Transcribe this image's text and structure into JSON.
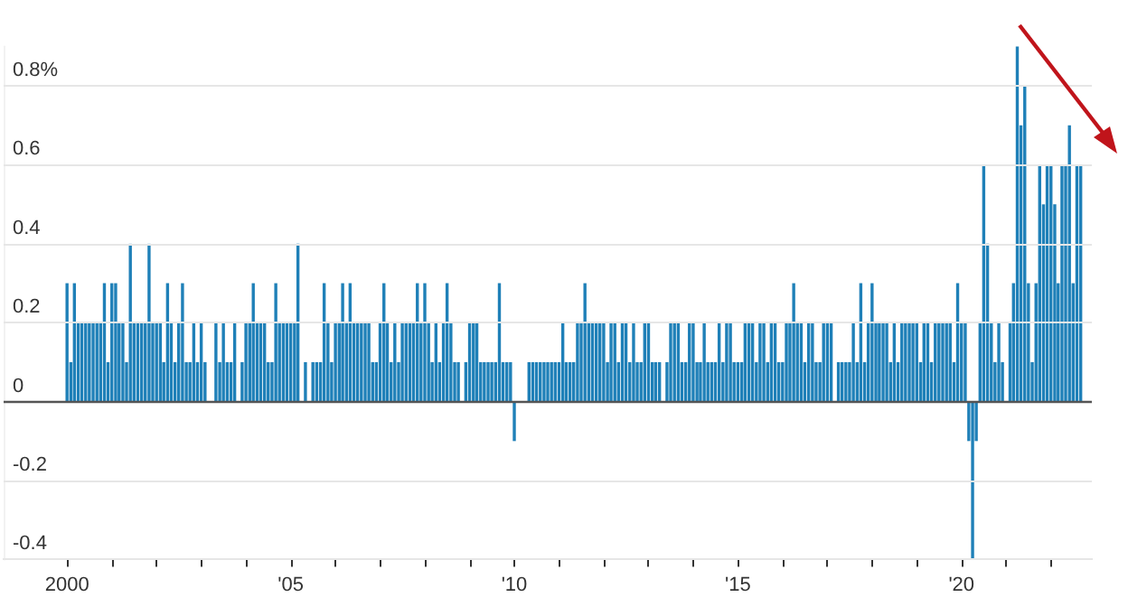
{
  "chart_data": {
    "type": "bar",
    "color": "#1f80b8",
    "grid": "y",
    "x": [
      "2000-01",
      "2000-02",
      "2000-03",
      "2000-04",
      "2000-05",
      "2000-06",
      "2000-07",
      "2000-08",
      "2000-09",
      "2000-10",
      "2000-11",
      "2000-12",
      "2001-01",
      "2001-02",
      "2001-03",
      "2001-04",
      "2001-05",
      "2001-06",
      "2001-07",
      "2001-08",
      "2001-09",
      "2001-10",
      "2001-11",
      "2001-12",
      "2002-01",
      "2002-02",
      "2002-03",
      "2002-04",
      "2002-05",
      "2002-06",
      "2002-07",
      "2002-08",
      "2002-09",
      "2002-10",
      "2002-11",
      "2002-12",
      "2003-01",
      "2003-02",
      "2003-03",
      "2003-04",
      "2003-05",
      "2003-06",
      "2003-07",
      "2003-08",
      "2003-09",
      "2003-10",
      "2003-11",
      "2003-12",
      "2004-01",
      "2004-02",
      "2004-03",
      "2004-04",
      "2004-05",
      "2004-06",
      "2004-07",
      "2004-08",
      "2004-09",
      "2004-10",
      "2004-11",
      "2004-12",
      "2005-01",
      "2005-02",
      "2005-03",
      "2005-04",
      "2005-05",
      "2005-06",
      "2005-07",
      "2005-08",
      "2005-09",
      "2005-10",
      "2005-11",
      "2005-12",
      "2006-01",
      "2006-02",
      "2006-03",
      "2006-04",
      "2006-05",
      "2006-06",
      "2006-07",
      "2006-08",
      "2006-09",
      "2006-10",
      "2006-11",
      "2006-12",
      "2007-01",
      "2007-02",
      "2007-03",
      "2007-04",
      "2007-05",
      "2007-06",
      "2007-07",
      "2007-08",
      "2007-09",
      "2007-10",
      "2007-11",
      "2007-12",
      "2008-01",
      "2008-02",
      "2008-03",
      "2008-04",
      "2008-05",
      "2008-06",
      "2008-07",
      "2008-08",
      "2008-09",
      "2008-10",
      "2008-11",
      "2008-12",
      "2009-01",
      "2009-02",
      "2009-03",
      "2009-04",
      "2009-05",
      "2009-06",
      "2009-07",
      "2009-08",
      "2009-09",
      "2009-10",
      "2009-11",
      "2009-12",
      "2010-01",
      "2010-02",
      "2010-03",
      "2010-04",
      "2010-05",
      "2010-06",
      "2010-07",
      "2010-08",
      "2010-09",
      "2010-10",
      "2010-11",
      "2010-12",
      "2011-01",
      "2011-02",
      "2011-03",
      "2011-04",
      "2011-05",
      "2011-06",
      "2011-07",
      "2011-08",
      "2011-09",
      "2011-10",
      "2011-11",
      "2011-12",
      "2012-01",
      "2012-02",
      "2012-03",
      "2012-04",
      "2012-05",
      "2012-06",
      "2012-07",
      "2012-08",
      "2012-09",
      "2012-10",
      "2012-11",
      "2012-12",
      "2013-01",
      "2013-02",
      "2013-03",
      "2013-04",
      "2013-05",
      "2013-06",
      "2013-07",
      "2013-08",
      "2013-09",
      "2013-10",
      "2013-11",
      "2013-12",
      "2014-01",
      "2014-02",
      "2014-03",
      "2014-04",
      "2014-05",
      "2014-06",
      "2014-07",
      "2014-08",
      "2014-09",
      "2014-10",
      "2014-11",
      "2014-12",
      "2015-01",
      "2015-02",
      "2015-03",
      "2015-04",
      "2015-05",
      "2015-06",
      "2015-07",
      "2015-08",
      "2015-09",
      "2015-10",
      "2015-11",
      "2015-12",
      "2016-01",
      "2016-02",
      "2016-03",
      "2016-04",
      "2016-05",
      "2016-06",
      "2016-07",
      "2016-08",
      "2016-09",
      "2016-10",
      "2016-11",
      "2016-12",
      "2017-01",
      "2017-02",
      "2017-03",
      "2017-04",
      "2017-05",
      "2017-06",
      "2017-07",
      "2017-08",
      "2017-09",
      "2017-10",
      "2017-11",
      "2017-12",
      "2018-01",
      "2018-02",
      "2018-03",
      "2018-04",
      "2018-05",
      "2018-06",
      "2018-07",
      "2018-08",
      "2018-09",
      "2018-10",
      "2018-11",
      "2018-12",
      "2019-01",
      "2019-02",
      "2019-03",
      "2019-04",
      "2019-05",
      "2019-06",
      "2019-07",
      "2019-08",
      "2019-09",
      "2019-10",
      "2019-11",
      "2019-12",
      "2020-01",
      "2020-02",
      "2020-03",
      "2020-04",
      "2020-05",
      "2020-06",
      "2020-07",
      "2020-08",
      "2020-09",
      "2020-10",
      "2020-11",
      "2020-12",
      "2021-01",
      "2021-02",
      "2021-03",
      "2021-04",
      "2021-05",
      "2021-06",
      "2021-07",
      "2021-08",
      "2021-09",
      "2021-10",
      "2021-11",
      "2021-12",
      "2022-01",
      "2022-02",
      "2022-03",
      "2022-04",
      "2022-05",
      "2022-06",
      "2022-07",
      "2022-08",
      "2022-09"
    ],
    "values": [
      0.3,
      0.1,
      0.3,
      0.2,
      0.2,
      0.2,
      0.2,
      0.2,
      0.2,
      0.2,
      0.3,
      0.1,
      0.3,
      0.3,
      0.2,
      0.2,
      0.1,
      0.4,
      0.2,
      0.2,
      0.2,
      0.2,
      0.4,
      0.2,
      0.2,
      0.2,
      0.1,
      0.3,
      0.2,
      0.1,
      0.2,
      0.3,
      0.1,
      0.1,
      0.2,
      0.1,
      0.2,
      0.1,
      0,
      0,
      0.2,
      0.1,
      0.2,
      0.1,
      0.1,
      0.2,
      0,
      0.1,
      0.2,
      0.2,
      0.3,
      0.2,
      0.2,
      0.2,
      0.1,
      0.1,
      0.3,
      0.2,
      0.2,
      0.2,
      0.2,
      0.2,
      0.4,
      0,
      0.1,
      0,
      0.1,
      0.1,
      0.1,
      0.3,
      0.2,
      0.1,
      0.2,
      0.2,
      0.3,
      0.2,
      0.3,
      0.2,
      0.2,
      0.2,
      0.2,
      0.2,
      0.1,
      0.1,
      0.2,
      0.3,
      0.2,
      0.1,
      0.2,
      0.1,
      0.2,
      0.2,
      0.2,
      0.2,
      0.3,
      0.2,
      0.3,
      0.2,
      0.1,
      0.2,
      0.1,
      0.2,
      0.3,
      0.2,
      0.1,
      0.1,
      0,
      0.1,
      0.2,
      0.2,
      0.2,
      0.1,
      0.1,
      0.1,
      0.1,
      0.1,
      0.3,
      0.1,
      0.1,
      0.1,
      -0.1,
      0,
      0,
      0,
      0.1,
      0.1,
      0.1,
      0.1,
      0.1,
      0.1,
      0.1,
      0.1,
      0.1,
      0.2,
      0.1,
      0.1,
      0.1,
      0.2,
      0.2,
      0.3,
      0.2,
      0.2,
      0.2,
      0.2,
      0.2,
      0.1,
      0.2,
      0.2,
      0.1,
      0.2,
      0.2,
      0.1,
      0.2,
      0.1,
      0.1,
      0.2,
      0.2,
      0.1,
      0.1,
      0.1,
      0,
      0.1,
      0.2,
      0.2,
      0.2,
      0.1,
      0.1,
      0.2,
      0.2,
      0.1,
      0.1,
      0.2,
      0.1,
      0.1,
      0.1,
      0.2,
      0.1,
      0.2,
      0.2,
      0.1,
      0.1,
      0.1,
      0.2,
      0.2,
      0.2,
      0.1,
      0.2,
      0.2,
      0.1,
      0.2,
      0.2,
      0.1,
      0.1,
      0.2,
      0.2,
      0.3,
      0.2,
      0.2,
      0.1,
      0.2,
      0.2,
      0.1,
      0.1,
      0.2,
      0.2,
      0.2,
      0,
      0.1,
      0.1,
      0.1,
      0.1,
      0.2,
      0.1,
      0.3,
      0.1,
      0.2,
      0.3,
      0.2,
      0.2,
      0.2,
      0.2,
      0.1,
      0.2,
      0.1,
      0.2,
      0.2,
      0.2,
      0.2,
      0.2,
      0.1,
      0.2,
      0.2,
      0.1,
      0.2,
      0.2,
      0.2,
      0.2,
      0.2,
      0.1,
      0.3,
      0.2,
      0.2,
      -0.1,
      -0.4,
      -0.1,
      0.2,
      0.6,
      0.4,
      0.2,
      0.1,
      0.2,
      0.1,
      0,
      0.2,
      0.3,
      0.9,
      0.7,
      0.8,
      0.3,
      0.1,
      0.3,
      0.6,
      0.5,
      0.6,
      0.6,
      0.5,
      0.3,
      0.6,
      0.6,
      0.7,
      0.3,
      0.6,
      0.6
    ],
    "xlim": [
      "1998-08",
      "2022-12"
    ],
    "xticks": [
      {
        "value": "2000",
        "label": "2000"
      },
      {
        "value": "2001",
        "label": null
      },
      {
        "value": "2002",
        "label": null
      },
      {
        "value": "2003",
        "label": null
      },
      {
        "value": "2004",
        "label": null
      },
      {
        "value": "2005",
        "label": "'05"
      },
      {
        "value": "2006",
        "label": null
      },
      {
        "value": "2007",
        "label": null
      },
      {
        "value": "2008",
        "label": null
      },
      {
        "value": "2009",
        "label": null
      },
      {
        "value": "2010",
        "label": "'10"
      },
      {
        "value": "2011",
        "label": null
      },
      {
        "value": "2012",
        "label": null
      },
      {
        "value": "2013",
        "label": null
      },
      {
        "value": "2014",
        "label": null
      },
      {
        "value": "2015",
        "label": "'15"
      },
      {
        "value": "2016",
        "label": null
      },
      {
        "value": "2017",
        "label": null
      },
      {
        "value": "2018",
        "label": null
      },
      {
        "value": "2019",
        "label": null
      },
      {
        "value": "2020",
        "label": "'20"
      },
      {
        "value": "2021",
        "label": null
      },
      {
        "value": "2022",
        "label": null
      }
    ],
    "ylim": [
      -0.4,
      0.9
    ],
    "yticks": [
      -0.4,
      -0.2,
      0,
      0.2,
      0.4,
      {
        "value": 0.6,
        "label": "0.6"
      },
      {
        "value": 0.8,
        "label": "0.8%"
      }
    ]
  }
}
